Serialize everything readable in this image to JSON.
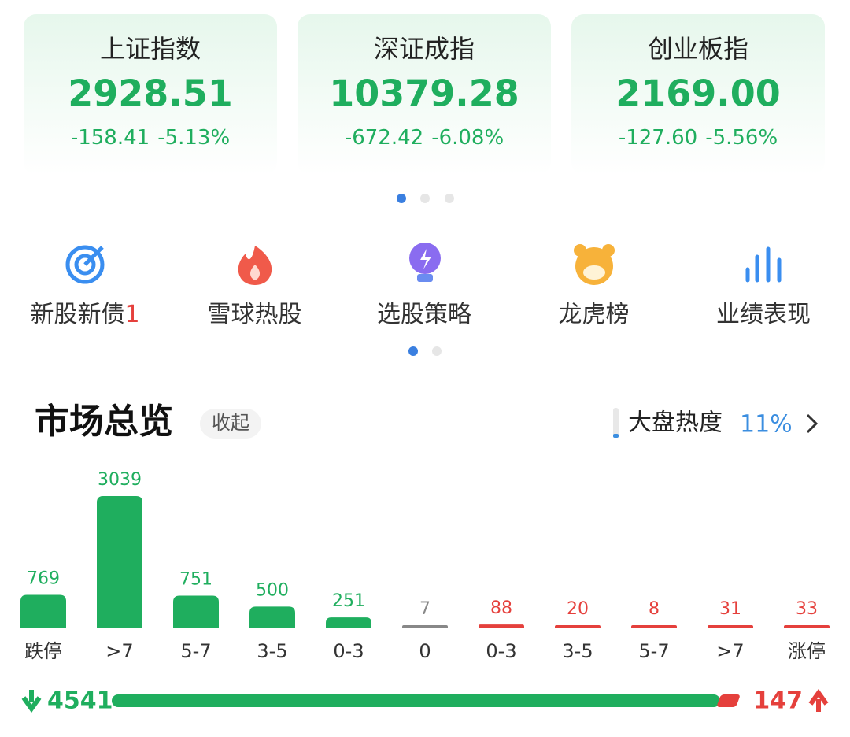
{
  "indices": [
    {
      "name": "上证指数",
      "value": "2928.51",
      "change": "-158.41",
      "percent": "-5.13%"
    },
    {
      "name": "深证成指",
      "value": "10379.28",
      "change": "-672.42",
      "percent": "-6.08%"
    },
    {
      "name": "创业板指",
      "value": "2169.00",
      "change": "-127.60",
      "percent": "-5.56%"
    }
  ],
  "shortcuts": [
    {
      "label": "新股新债",
      "badge": "1"
    },
    {
      "label": "雪球热股"
    },
    {
      "label": "选股策略"
    },
    {
      "label": "龙虎榜"
    },
    {
      "label": "业绩表现"
    }
  ],
  "market": {
    "title": "市场总览",
    "toggle": "收起",
    "heat_label": "大盘热度",
    "heat_value": "11%"
  },
  "chart_data": {
    "type": "bar",
    "categories": [
      "跌停",
      ">7",
      "5-7",
      "3-5",
      "0-3",
      "0",
      "0-3",
      "3-5",
      "5-7",
      ">7",
      "涨停"
    ],
    "values": [
      769,
      3039,
      751,
      500,
      251,
      7,
      88,
      20,
      8,
      31,
      33
    ],
    "colors": [
      "#1fae5e",
      "#1fae5e",
      "#1fae5e",
      "#1fae5e",
      "#1fae5e",
      "#888888",
      "#e5403c",
      "#e5403c",
      "#e5403c",
      "#e5403c",
      "#e5403c"
    ]
  },
  "breadth": {
    "down": 4541,
    "up": 147
  }
}
